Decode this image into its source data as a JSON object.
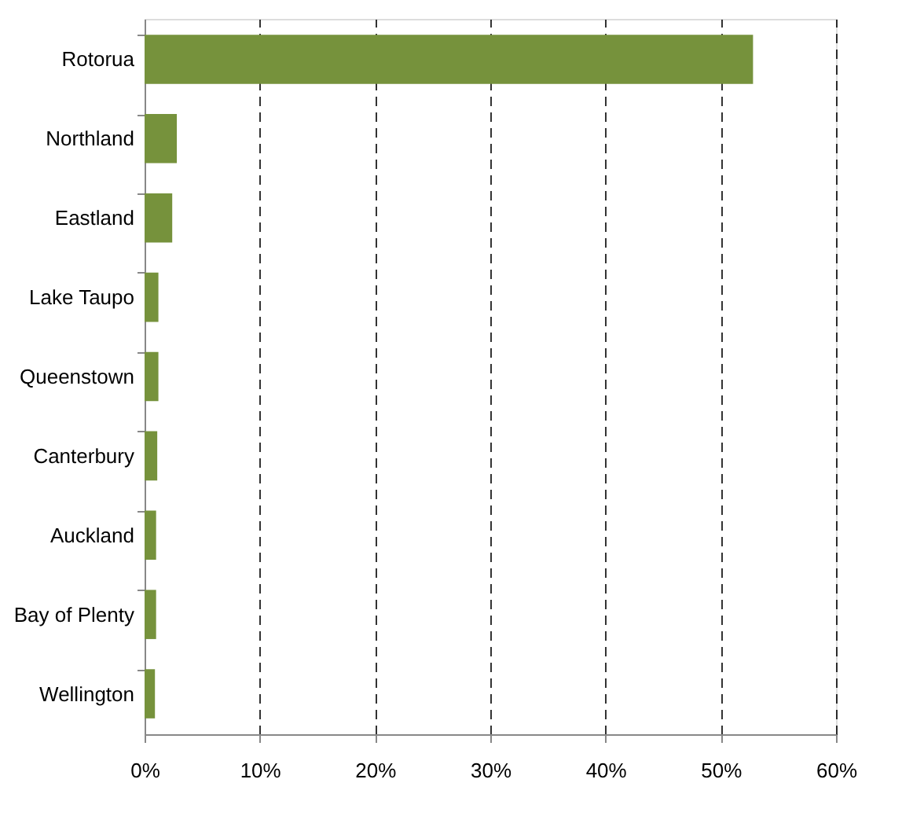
{
  "chart_data": {
    "type": "bar",
    "orientation": "horizontal",
    "categories": [
      "Rotorua",
      "Northland",
      "Eastland",
      "Lake Taupo",
      "Queenstown",
      "Canterbury",
      "Auckland",
      "Bay of Plenty",
      "Wellington"
    ],
    "values": [
      52.8,
      2.8,
      2.4,
      1.2,
      1.2,
      1.1,
      1.0,
      1.0,
      0.9
    ],
    "color": "#76923c",
    "xlim": [
      0,
      60
    ],
    "xticks": [
      {
        "value": 0,
        "label": "0%"
      },
      {
        "value": 10,
        "label": "10%"
      },
      {
        "value": 20,
        "label": "20%"
      },
      {
        "value": 30,
        "label": "30%"
      },
      {
        "value": 40,
        "label": "40%"
      },
      {
        "value": 50,
        "label": "50%"
      },
      {
        "value": 60,
        "label": "60%"
      }
    ],
    "grid": "x"
  }
}
